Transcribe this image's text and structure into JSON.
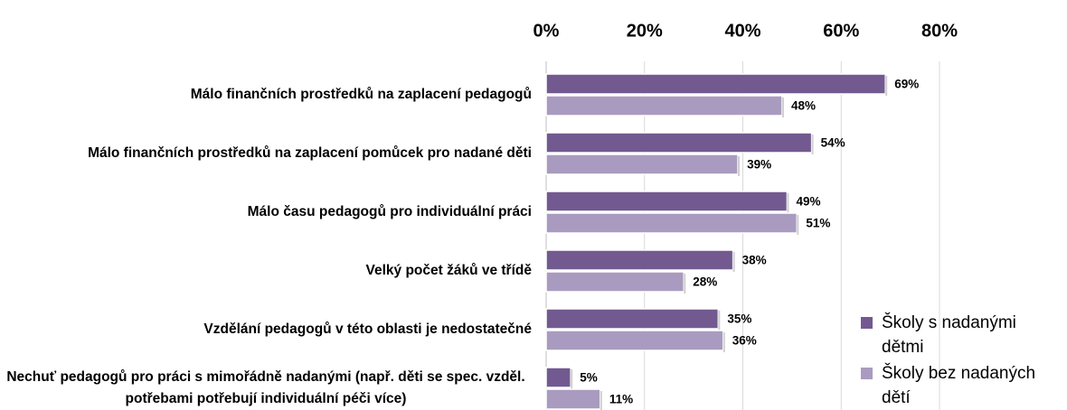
{
  "chart_data": {
    "type": "barh",
    "categories": [
      "Málo finančních prostředků na zaplacení pedagogů",
      "Málo finančních prostředků na zaplacení pomůcek pro nadané děti",
      "Málo času pedagogů pro individuální práci",
      "Velký počet žáků ve třídě",
      "Vzdělání pedagogů v této oblasti je nedostatečné",
      "Nechuť pedagogů pro práci s mimořádně nadanými (např. děti se spec. vzděl. potřebami potřebují individuální péči více)"
    ],
    "series": [
      {
        "name": "Školy s nadanými dětmi",
        "color": "#725a91",
        "values": [
          69,
          54,
          49,
          38,
          35,
          5
        ],
        "value_labels": [
          "69%",
          "54%",
          "49%",
          "38%",
          "35%",
          "5%"
        ]
      },
      {
        "name": "Školy bez nadaných dětí",
        "color": "#a99bc0",
        "values": [
          48,
          39,
          51,
          28,
          36,
          11
        ],
        "value_labels": [
          "48%",
          "39%",
          "51%",
          "28%",
          "36%",
          "11%"
        ]
      }
    ],
    "xlim": [
      0,
      80
    ],
    "xticks": [
      {
        "value": 0,
        "label": "0%"
      },
      {
        "value": 20,
        "label": "20%"
      },
      {
        "value": 40,
        "label": "40%"
      },
      {
        "value": 60,
        "label": "60%"
      },
      {
        "value": 80,
        "label": "80%"
      }
    ],
    "grid": true,
    "legend": "right"
  }
}
